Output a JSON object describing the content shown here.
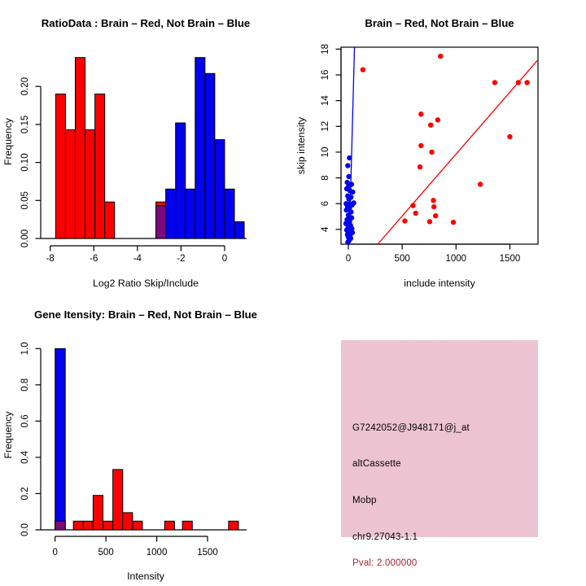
{
  "colors": {
    "red": "#fb0000",
    "blue": "#0202ee",
    "overlap_purple": "#7d0a7d",
    "axis_black": "#000000",
    "info_box_pink": "#eec3ce",
    "pval_dark_red": "#a32638"
  },
  "chart_data": [
    {
      "type": "bar",
      "panel": "top-left",
      "title": "RatioData : Brain – Red, Not Brain – Blue",
      "xlabel": "Log2 Ratio Skip/Include",
      "ylabel": "Frequency",
      "xlim": [
        -8.25,
        1.01
      ],
      "ylim": [
        0,
        0.2548
      ],
      "grid": false,
      "xticks": [
        -8,
        -6,
        -4,
        -2,
        0
      ],
      "xtick_labels": [
        "-8",
        "-6",
        "-4",
        "-2",
        "0"
      ],
      "yticks": [
        0.0,
        0.05,
        0.1,
        0.15,
        0.2
      ],
      "ytick_labels": [
        "0.00",
        "0.05",
        "0.10",
        "0.15",
        "0.20"
      ],
      "series": [
        {
          "name": "brain-red",
          "color": "#fb0000",
          "bars": [
            {
              "x0": -7.75,
              "x1": -7.3,
              "y": 0.19
            },
            {
              "x0": -7.3,
              "x1": -6.85,
              "y": 0.143
            },
            {
              "x0": -6.85,
              "x1": -6.4,
              "y": 0.238
            },
            {
              "x0": -6.4,
              "x1": -5.95,
              "y": 0.143
            },
            {
              "x0": -5.95,
              "x1": -5.5,
              "y": 0.19
            },
            {
              "x0": -5.5,
              "x1": -5.05,
              "y": 0.048
            },
            {
              "x0": -3.15,
              "x1": -2.7,
              "y": 0.048
            }
          ]
        },
        {
          "name": "not-brain-blue",
          "color": "#0202ee",
          "bars": [
            {
              "x0": -3.15,
              "x1": -2.7,
              "y": 0.043
            },
            {
              "x0": -2.7,
              "x1": -2.25,
              "y": 0.065
            },
            {
              "x0": -2.25,
              "x1": -1.8,
              "y": 0.152
            },
            {
              "x0": -1.8,
              "x1": -1.35,
              "y": 0.065
            },
            {
              "x0": -1.35,
              "x1": -0.9,
              "y": 0.238
            },
            {
              "x0": -0.9,
              "x1": -0.45,
              "y": 0.217
            },
            {
              "x0": -0.45,
              "x1": 0.0,
              "y": 0.13
            },
            {
              "x0": 0.0,
              "x1": 0.45,
              "y": 0.065
            },
            {
              "x0": 0.45,
              "x1": 0.9,
              "y": 0.022
            }
          ]
        },
        {
          "name": "overlap",
          "color": "#7d0a7d",
          "bars": [
            {
              "x0": -3.15,
              "x1": -2.7,
              "y": 0.043
            }
          ]
        }
      ]
    },
    {
      "type": "scatter",
      "panel": "top-right",
      "title": "Brain – Red, Not Brain – Blue",
      "xlabel": "include intensity",
      "ylabel": "skip intensity",
      "xlim": [
        -68,
        1761
      ],
      "ylim": [
        2.85,
        18.15
      ],
      "grid": false,
      "xticks": [
        0,
        500,
        1000,
        1500
      ],
      "xtick_labels": [
        "0",
        "500",
        "1000",
        "1500"
      ],
      "yticks": [
        4,
        6,
        8,
        10,
        12,
        14,
        16,
        18
      ],
      "ytick_labels": [
        "4",
        "6",
        "8",
        "10",
        "12",
        "14",
        "16",
        "18"
      ],
      "series": [
        {
          "name": "brain-red",
          "color": "#fb0000",
          "points": [
            [
              856,
              17.45
            ],
            [
              135,
              16.4
            ],
            [
              1360,
              15.4
            ],
            [
              1578,
              15.4
            ],
            [
              1660,
              15.4
            ],
            [
              675,
              12.95
            ],
            [
              830,
              12.5
            ],
            [
              765,
              12.1
            ],
            [
              1500,
              11.2
            ],
            [
              675,
              10.5
            ],
            [
              775,
              10.0
            ],
            [
              665,
              8.85
            ],
            [
              1225,
              7.5
            ],
            [
              790,
              6.25
            ],
            [
              600,
              5.85
            ],
            [
              795,
              5.75
            ],
            [
              625,
              5.25
            ],
            [
              810,
              5.05
            ],
            [
              525,
              4.65
            ],
            [
              755,
              4.6
            ],
            [
              975,
              4.55
            ]
          ]
        },
        {
          "name": "not-brain-blue",
          "color": "#0202ee",
          "points": [
            [
              10,
              9.55
            ],
            [
              -5,
              8.95
            ],
            [
              5,
              8.1
            ],
            [
              -10,
              7.65
            ],
            [
              30,
              7.5
            ],
            [
              0,
              7.3
            ],
            [
              -15,
              7.15
            ],
            [
              15,
              7.0
            ],
            [
              40,
              6.9
            ],
            [
              -5,
              6.6
            ],
            [
              25,
              6.5
            ],
            [
              5,
              6.35
            ],
            [
              50,
              6.05
            ],
            [
              -20,
              6.0
            ],
            [
              15,
              5.95
            ],
            [
              35,
              5.9
            ],
            [
              -8,
              5.8
            ],
            [
              10,
              5.6
            ],
            [
              -18,
              5.5
            ],
            [
              25,
              5.35
            ],
            [
              0,
              5.1
            ],
            [
              30,
              4.9
            ],
            [
              -12,
              4.75
            ],
            [
              12,
              4.6
            ],
            [
              -22,
              4.45
            ],
            [
              20,
              4.3
            ],
            [
              -2,
              4.15
            ],
            [
              32,
              4.05
            ],
            [
              -15,
              3.95
            ],
            [
              8,
              3.85
            ],
            [
              38,
              3.75
            ],
            [
              -8,
              3.6
            ],
            [
              15,
              3.5
            ],
            [
              0,
              3.4
            ],
            [
              22,
              3.3
            ],
            [
              5,
              3.1
            ],
            [
              -5,
              3.0
            ]
          ]
        }
      ],
      "lines": [
        {
          "name": "red-fit-line",
          "color": "#fb0000",
          "x1": 273,
          "y1": 2.85,
          "x2": 1761,
          "y2": 17.17
        },
        {
          "name": "blue-fit-line",
          "color": "#0202ee",
          "x1": 8,
          "y1": 2.85,
          "x2": 57,
          "y2": 18.15
        }
      ]
    },
    {
      "type": "bar",
      "panel": "bottom-left",
      "title": "Gene Itensity: Brain – Red, Not Brain – Blue",
      "xlabel": "Intensity",
      "ylabel": "Frequency",
      "xlim": [
        -101.7,
        1884.3
      ],
      "ylim": [
        0,
        1.0463
      ],
      "grid": false,
      "xticks": [
        0,
        500,
        1000,
        1500
      ],
      "xtick_labels": [
        "0",
        "500",
        "1000",
        "1500"
      ],
      "yticks": [
        0.0,
        0.2,
        0.4,
        0.6,
        0.8,
        1.0
      ],
      "ytick_labels": [
        "0.0",
        "0.2",
        "0.4",
        "0.6",
        "0.8",
        "1.0"
      ],
      "series": [
        {
          "name": "brain-red",
          "color": "#fb0000",
          "bars": [
            {
              "x0": 0,
              "x1": 100,
              "y": 0.048
            },
            {
              "x0": 180,
              "x1": 277,
              "y": 0.048
            },
            {
              "x0": 277,
              "x1": 374,
              "y": 0.048
            },
            {
              "x0": 374,
              "x1": 471,
              "y": 0.19
            },
            {
              "x0": 471,
              "x1": 568,
              "y": 0.048
            },
            {
              "x0": 568,
              "x1": 665,
              "y": 0.333
            },
            {
              "x0": 665,
              "x1": 762,
              "y": 0.095
            },
            {
              "x0": 762,
              "x1": 859,
              "y": 0.048
            },
            {
              "x0": 1078,
              "x1": 1175,
              "y": 0.048
            },
            {
              "x0": 1253,
              "x1": 1350,
              "y": 0.048
            },
            {
              "x0": 1707,
              "x1": 1804,
              "y": 0.048
            }
          ]
        },
        {
          "name": "not-brain-blue",
          "color": "#0202ee",
          "bars": [
            {
              "x0": 0,
              "x1": 100,
              "y": 1.0
            }
          ]
        },
        {
          "name": "overlap",
          "color": "#7d0a7d",
          "bars": [
            {
              "x0": 0,
              "x1": 100,
              "y": 0.048
            }
          ]
        }
      ]
    }
  ],
  "info_box": {
    "probe_id": "G7242052@J948171@j_at",
    "splice_type": "altCassette",
    "gene": "Mobp",
    "locus": "chr9.27043-1.1",
    "pval": "Pval: 2.000000"
  }
}
